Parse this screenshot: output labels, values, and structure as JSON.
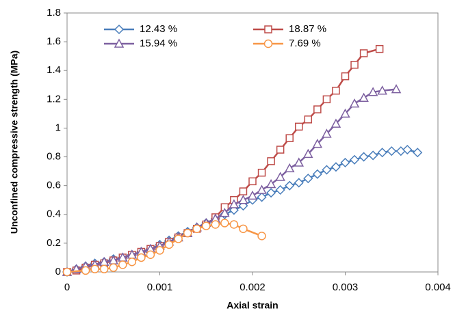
{
  "chart_data": {
    "type": "line",
    "x_label": "Axial strain",
    "y_label": "Unconfined compressive strength (MPa)",
    "xlim": [
      0,
      0.004
    ],
    "xticks": [
      0,
      0.001,
      0.002,
      0.003,
      0.004
    ],
    "ylim": [
      0,
      1.8
    ],
    "yticks": [
      0,
      0.2,
      0.4,
      0.6,
      0.8,
      1,
      1.2,
      1.4,
      1.6,
      1.8
    ],
    "grid": false,
    "legend": "upper left",
    "series": [
      {
        "name": "12.43 %",
        "color": "#4a7ebb",
        "marker": "diamond",
        "x": [
          0,
          0.0001,
          0.0002,
          0.0003,
          0.0004,
          0.0005,
          0.0006,
          0.0007,
          0.0008,
          0.0009,
          0.001,
          0.0011,
          0.0012,
          0.0013,
          0.0014,
          0.0015,
          0.0016,
          0.0017,
          0.0018,
          0.0019,
          0.002,
          0.0021,
          0.0022,
          0.0023,
          0.0024,
          0.0025,
          0.0026,
          0.0027,
          0.0028,
          0.0029,
          0.003,
          0.0031,
          0.0032,
          0.0033,
          0.0034,
          0.0035,
          0.0036,
          0.00367,
          0.00378
        ],
        "values": [
          0,
          0.02,
          0.04,
          0.06,
          0.07,
          0.09,
          0.1,
          0.12,
          0.14,
          0.16,
          0.19,
          0.22,
          0.25,
          0.28,
          0.31,
          0.34,
          0.37,
          0.4,
          0.43,
          0.46,
          0.5,
          0.52,
          0.55,
          0.57,
          0.6,
          0.62,
          0.65,
          0.68,
          0.71,
          0.73,
          0.76,
          0.78,
          0.8,
          0.81,
          0.83,
          0.84,
          0.84,
          0.85,
          0.83
        ]
      },
      {
        "name": "18.87 %",
        "color": "#be4b48",
        "marker": "square",
        "x": [
          0,
          0.0001,
          0.0002,
          0.0003,
          0.0004,
          0.0005,
          0.0006,
          0.0007,
          0.0008,
          0.0009,
          0.001,
          0.0011,
          0.0012,
          0.0013,
          0.0014,
          0.0015,
          0.0016,
          0.0017,
          0.0018,
          0.0019,
          0.002,
          0.0021,
          0.0022,
          0.0023,
          0.0024,
          0.0025,
          0.0026,
          0.0027,
          0.0028,
          0.0029,
          0.003,
          0.0031,
          0.0032,
          0.00337
        ],
        "values": [
          0,
          0.01,
          0.03,
          0.05,
          0.06,
          0.08,
          0.1,
          0.12,
          0.14,
          0.16,
          0.18,
          0.21,
          0.24,
          0.27,
          0.3,
          0.33,
          0.38,
          0.45,
          0.5,
          0.56,
          0.63,
          0.69,
          0.77,
          0.85,
          0.93,
          1.01,
          1.06,
          1.13,
          1.2,
          1.26,
          1.36,
          1.44,
          1.52,
          1.55
        ]
      },
      {
        "name": "15.94 %",
        "color": "#7d60a0",
        "marker": "triangle",
        "x": [
          0,
          0.0001,
          0.0002,
          0.0003,
          0.0004,
          0.0005,
          0.0006,
          0.0007,
          0.0008,
          0.0009,
          0.001,
          0.0011,
          0.0012,
          0.0013,
          0.0014,
          0.0015,
          0.0016,
          0.0017,
          0.0018,
          0.0019,
          0.002,
          0.0021,
          0.0022,
          0.0023,
          0.0024,
          0.0025,
          0.0026,
          0.0027,
          0.0028,
          0.0029,
          0.003,
          0.0031,
          0.0032,
          0.0033,
          0.0034,
          0.00355
        ],
        "values": [
          0,
          0.02,
          0.04,
          0.05,
          0.07,
          0.08,
          0.1,
          0.12,
          0.14,
          0.16,
          0.18,
          0.21,
          0.24,
          0.27,
          0.31,
          0.34,
          0.37,
          0.41,
          0.47,
          0.5,
          0.53,
          0.57,
          0.61,
          0.66,
          0.72,
          0.76,
          0.82,
          0.89,
          0.96,
          1.03,
          1.1,
          1.17,
          1.21,
          1.25,
          1.26,
          1.27
        ]
      },
      {
        "name": "7.69 %",
        "color": "#f79646",
        "marker": "circle",
        "x": [
          0,
          0.0002,
          0.0003,
          0.0004,
          0.0005,
          0.0006,
          0.0007,
          0.0008,
          0.0009,
          0.001,
          0.0011,
          0.0012,
          0.0013,
          0.0014,
          0.0015,
          0.0016,
          0.0017,
          0.0018,
          0.0019,
          0.0021
        ],
        "values": [
          0,
          0.01,
          0.02,
          0.02,
          0.03,
          0.05,
          0.07,
          0.1,
          0.12,
          0.15,
          0.19,
          0.23,
          0.27,
          0.3,
          0.32,
          0.33,
          0.34,
          0.33,
          0.3,
          0.25
        ]
      }
    ]
  }
}
